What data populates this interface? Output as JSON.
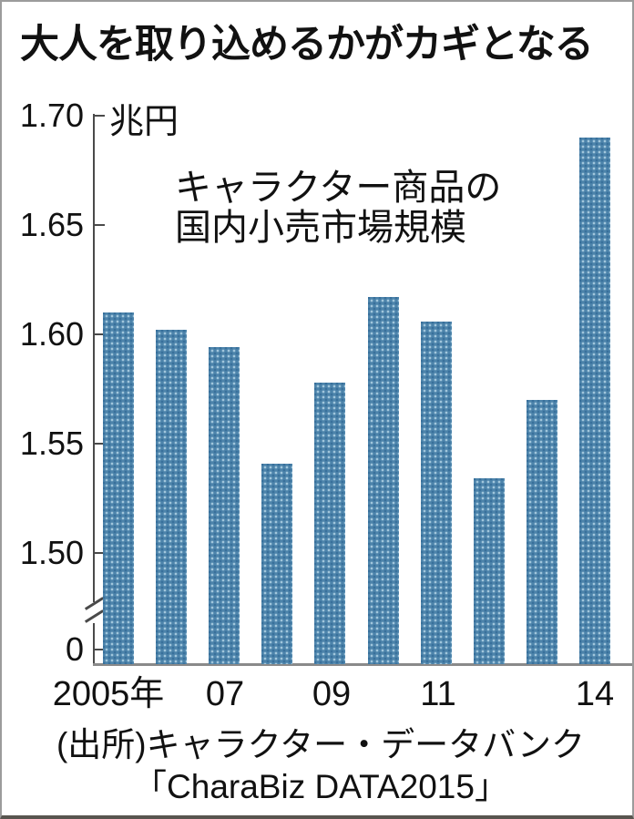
{
  "title": "大人を取り込めるかがカギとなる",
  "panel": {
    "unit_label": "兆円",
    "annotation_line1": "キャラクター商品の",
    "annotation_line2": "国内小売市場規模",
    "source_line1": "(出所)キャラクター・データバンク",
    "source_line2": "「CharaBiz DATA2015」"
  },
  "colors": {
    "bar": "#4d84ab",
    "bar_dot_light": "#a3c8dd",
    "bar_dot_dark": "#37709b",
    "axis": "#4a4a4a",
    "baseline": "#8a8a8a"
  },
  "chart_data": {
    "type": "bar",
    "title": "キャラクター商品の国内小売市場規模",
    "ylabel": "兆円",
    "categories": [
      "2005",
      "2006",
      "2007",
      "2008",
      "2009",
      "2010",
      "2011",
      "2012",
      "2013",
      "2014"
    ],
    "values": [
      1.61,
      1.602,
      1.594,
      1.541,
      1.578,
      1.617,
      1.606,
      1.534,
      1.57,
      1.69
    ],
    "ylim_display": [
      1.5,
      1.7
    ],
    "axis_break_to_zero": true,
    "y_tick_labels": [
      "1.70",
      "1.65",
      "1.60",
      "1.55",
      "1.50",
      "0"
    ],
    "x_tick_labels": [
      "2005年",
      "07",
      "09",
      "11",
      "14"
    ],
    "grid": false,
    "legend": "none"
  }
}
